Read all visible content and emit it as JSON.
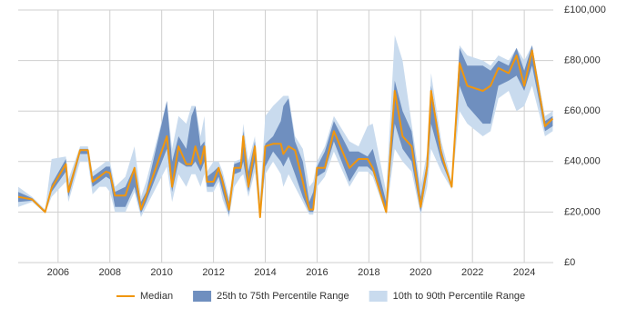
{
  "chart_data": {
    "type": "band-line",
    "x": [
      2004.46,
      2005.0,
      2005.5,
      2005.75,
      2006.3,
      2006.4,
      2006.85,
      2007.15,
      2007.33,
      2007.6,
      2007.85,
      2008.0,
      2008.2,
      2008.6,
      2008.95,
      2009.2,
      2009.4,
      2010.2,
      2010.4,
      2010.65,
      2010.95,
      2011.15,
      2011.3,
      2011.5,
      2011.65,
      2011.75,
      2012.0,
      2012.2,
      2012.35,
      2012.6,
      2012.8,
      2013.05,
      2013.15,
      2013.35,
      2013.6,
      2013.8,
      2014.0,
      2014.3,
      2014.6,
      2014.7,
      2014.9,
      2015.15,
      2015.45,
      2015.7,
      2015.85,
      2016.0,
      2016.3,
      2016.65,
      2017.25,
      2017.6,
      2017.95,
      2018.15,
      2018.67,
      2019.0,
      2019.3,
      2019.65,
      2020.0,
      2020.25,
      2020.4,
      2020.8,
      2021.2,
      2021.5,
      2021.8,
      2022.4,
      2022.7,
      2023.0,
      2023.4,
      2023.7,
      2024.0,
      2024.3,
      2024.8,
      2025.1
    ],
    "series": [
      {
        "name": "Median",
        "color": "#f0960f",
        "values": [
          26000,
          25000,
          20000,
          29500,
          39000,
          28000,
          44500,
          44500,
          32000,
          34000,
          36000,
          35500,
          26500,
          26500,
          37500,
          21000,
          26500,
          50000,
          30000,
          46000,
          39000,
          39000,
          46000,
          39000,
          46000,
          32000,
          32000,
          37500,
          32000,
          21000,
          37500,
          37500,
          50000,
          30000,
          46000,
          18000,
          46000,
          47000,
          47000,
          43000,
          46000,
          44500,
          32000,
          21000,
          21000,
          37500,
          37500,
          52000,
          37500,
          41000,
          41000,
          37500,
          20000,
          68000,
          50000,
          46000,
          22000,
          38000,
          68000,
          43000,
          30000,
          79000,
          70000,
          68000,
          70000,
          77000,
          75000,
          82000,
          70000,
          84000,
          54000,
          57000
        ]
      },
      {
        "name": "25th to 75th Percentile Range",
        "color": "#6f8fbf",
        "low": [
          24000,
          24500,
          20000,
          28000,
          36000,
          26000,
          43000,
          43000,
          30000,
          32000,
          34000,
          33000,
          22000,
          22000,
          30000,
          19500,
          24000,
          45000,
          28000,
          40000,
          38000,
          38000,
          40000,
          36000,
          40000,
          30000,
          30000,
          34000,
          28000,
          19000,
          35000,
          36000,
          40000,
          28000,
          40000,
          17500,
          38000,
          44000,
          40000,
          38000,
          42000,
          35000,
          26000,
          20000,
          20000,
          34000,
          36000,
          48000,
          32000,
          38000,
          38000,
          36000,
          20000,
          55000,
          45000,
          40000,
          20000,
          35000,
          55000,
          40000,
          30000,
          70000,
          62000,
          55000,
          55000,
          70000,
          72000,
          74000,
          68000,
          78000,
          52000,
          54000
        ],
        "high": [
          28000,
          25500,
          20500,
          31000,
          41000,
          30000,
          45000,
          45000,
          34000,
          36000,
          38000,
          38000,
          28000,
          30000,
          38000,
          24000,
          28000,
          64000,
          40000,
          50000,
          45000,
          58000,
          62000,
          46000,
          48000,
          34000,
          36000,
          38000,
          34000,
          24000,
          39000,
          40000,
          52000,
          36000,
          48000,
          22000,
          47000,
          50000,
          56000,
          62000,
          65000,
          48000,
          40000,
          24000,
          28000,
          38000,
          44000,
          56000,
          44000,
          44000,
          42000,
          45000,
          24000,
          72000,
          60000,
          52000,
          26000,
          40000,
          70000,
          45000,
          30000,
          85000,
          78000,
          78000,
          76000,
          80000,
          78000,
          85000,
          76000,
          86000,
          56000,
          58000
        ]
      },
      {
        "name": "10th to 90th Percentile Range",
        "color": "#c9dbee",
        "low": [
          22000,
          24000,
          19500,
          26000,
          32000,
          24000,
          40000,
          40000,
          27000,
          30000,
          30000,
          28000,
          20000,
          20000,
          28000,
          18000,
          22000,
          38000,
          24000,
          35000,
          30000,
          35000,
          35000,
          30000,
          35000,
          28000,
          28000,
          32000,
          25000,
          18000,
          30000,
          34000,
          35000,
          26000,
          36000,
          17000,
          35000,
          40000,
          35000,
          30000,
          35000,
          30000,
          24000,
          19000,
          19000,
          30000,
          34000,
          44000,
          30000,
          36000,
          36000,
          34000,
          19000,
          45000,
          40000,
          36000,
          19000,
          30000,
          45000,
          36000,
          29000,
          60000,
          55000,
          50000,
          52000,
          65000,
          68000,
          60000,
          62000,
          70000,
          50000,
          52000
        ],
        "high": [
          30000,
          26000,
          21000,
          41000,
          42000,
          33000,
          46000,
          46000,
          36000,
          38000,
          40000,
          40000,
          30000,
          34000,
          46000,
          26000,
          32000,
          64000,
          45000,
          58000,
          55000,
          62000,
          62000,
          50000,
          58000,
          36000,
          40000,
          40000,
          36000,
          26000,
          40000,
          41000,
          55000,
          40000,
          50000,
          26000,
          58000,
          62000,
          65000,
          66000,
          66000,
          50000,
          45000,
          30000,
          32000,
          40000,
          46000,
          58000,
          48000,
          46000,
          54000,
          55000,
          28000,
          90000,
          80000,
          55000,
          30000,
          44000,
          75000,
          48000,
          32000,
          86000,
          82000,
          80000,
          78000,
          82000,
          80000,
          85000,
          80000,
          86000,
          58000,
          60000
        ]
      }
    ],
    "xlim": [
      2004.46,
      2025.12
    ],
    "xticks": [
      2006,
      2008,
      2010,
      2012,
      2014,
      2016,
      2018,
      2020,
      2022,
      2024
    ],
    "ylim": [
      0,
      100000
    ],
    "yticks": [
      {
        "value": 0,
        "label": "£0"
      },
      {
        "value": 20000,
        "label": "£20,000"
      },
      {
        "value": 40000,
        "label": "£40,000"
      },
      {
        "value": 60000,
        "label": "£60,000"
      },
      {
        "value": 80000,
        "label": "£80,000"
      },
      {
        "value": 100000,
        "label": "£100,000"
      }
    ],
    "grid": true,
    "legend": "bottom"
  }
}
